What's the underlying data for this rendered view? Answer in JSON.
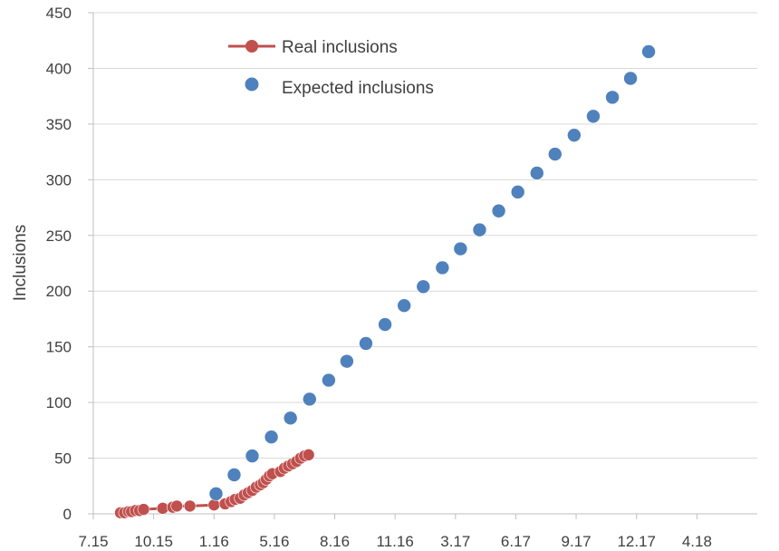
{
  "chart_data": {
    "type": "scatter",
    "title": "",
    "xlabel": "",
    "ylabel": "Inclusions",
    "x_tick_labels": [
      "7.15",
      "10.15",
      "1.16",
      "5.16",
      "8.16",
      "11.16",
      "3.17",
      "6.17",
      "9.17",
      "12.17",
      "4.18"
    ],
    "y_tick_labels": [
      "0",
      "50",
      "100",
      "150",
      "200",
      "250",
      "300",
      "350",
      "400",
      "450"
    ],
    "y_ticks": [
      0,
      50,
      100,
      150,
      200,
      250,
      300,
      350,
      400,
      450
    ],
    "x_range_months": [
      0,
      33
    ],
    "ylim": [
      0,
      450
    ],
    "grid": "horizontal",
    "legend_position": "top-left",
    "series": [
      {
        "name": "Real inclusions",
        "marker": "circle-with-line",
        "color": "#c0504d",
        "points": [
          {
            "x": 1.35,
            "y": 1
          },
          {
            "x": 1.55,
            "y": 1
          },
          {
            "x": 1.75,
            "y": 2
          },
          {
            "x": 1.9,
            "y": 2
          },
          {
            "x": 2.1,
            "y": 3
          },
          {
            "x": 2.3,
            "y": 3
          },
          {
            "x": 2.5,
            "y": 4
          },
          {
            "x": 3.45,
            "y": 5
          },
          {
            "x": 3.95,
            "y": 6
          },
          {
            "x": 4.15,
            "y": 7
          },
          {
            "x": 4.8,
            "y": 7
          },
          {
            "x": 6.0,
            "y": 8
          },
          {
            "x": 6.55,
            "y": 9
          },
          {
            "x": 6.85,
            "y": 11
          },
          {
            "x": 7.05,
            "y": 13
          },
          {
            "x": 7.3,
            "y": 14
          },
          {
            "x": 7.5,
            "y": 17
          },
          {
            "x": 7.7,
            "y": 19
          },
          {
            "x": 7.9,
            "y": 21
          },
          {
            "x": 8.1,
            "y": 24
          },
          {
            "x": 8.3,
            "y": 26
          },
          {
            "x": 8.45,
            "y": 28
          },
          {
            "x": 8.6,
            "y": 31
          },
          {
            "x": 8.75,
            "y": 34
          },
          {
            "x": 8.9,
            "y": 36
          },
          {
            "x": 9.3,
            "y": 38
          },
          {
            "x": 9.5,
            "y": 41
          },
          {
            "x": 9.7,
            "y": 43
          },
          {
            "x": 9.9,
            "y": 45
          },
          {
            "x": 10.1,
            "y": 47
          },
          {
            "x": 10.3,
            "y": 50
          },
          {
            "x": 10.5,
            "y": 52
          },
          {
            "x": 10.7,
            "y": 53
          }
        ]
      },
      {
        "name": "Expected inclusions",
        "marker": "circle",
        "color": "#4f81bd",
        "points": [
          {
            "x": 6.1,
            "y": 18
          },
          {
            "x": 7.0,
            "y": 35
          },
          {
            "x": 7.9,
            "y": 52
          },
          {
            "x": 8.85,
            "y": 69
          },
          {
            "x": 9.8,
            "y": 86
          },
          {
            "x": 10.75,
            "y": 103
          },
          {
            "x": 11.7,
            "y": 120
          },
          {
            "x": 12.6,
            "y": 137
          },
          {
            "x": 13.55,
            "y": 153
          },
          {
            "x": 14.5,
            "y": 170
          },
          {
            "x": 15.45,
            "y": 187
          },
          {
            "x": 16.4,
            "y": 204
          },
          {
            "x": 17.35,
            "y": 221
          },
          {
            "x": 18.25,
            "y": 238
          },
          {
            "x": 19.2,
            "y": 255
          },
          {
            "x": 20.15,
            "y": 272
          },
          {
            "x": 21.1,
            "y": 289
          },
          {
            "x": 22.05,
            "y": 306
          },
          {
            "x": 22.95,
            "y": 323
          },
          {
            "x": 23.9,
            "y": 340
          },
          {
            "x": 24.85,
            "y": 357
          },
          {
            "x": 25.8,
            "y": 374
          },
          {
            "x": 26.7,
            "y": 391
          },
          {
            "x": 27.6,
            "y": 415
          }
        ]
      }
    ]
  }
}
